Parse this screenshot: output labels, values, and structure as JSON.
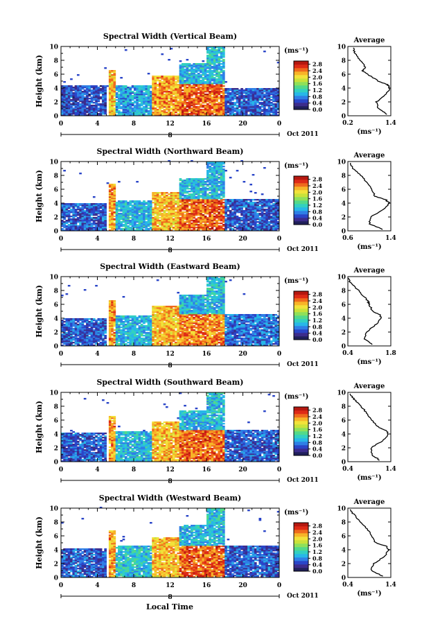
{
  "colors": {
    "colormap": [
      "#20205a",
      "#3c2c8c",
      "#2a45c8",
      "#2f7fe6",
      "#27b7e8",
      "#32d0c0",
      "#52d98a",
      "#8ee05a",
      "#c9e23a",
      "#f2e23a",
      "#f7b428",
      "#ef6a1c",
      "#de2a16",
      "#b51810"
    ],
    "bar_ticks": [
      "2.8",
      "2.4",
      "2.0",
      "1.6",
      "1.2",
      "0.8",
      "0.4",
      "0.0"
    ]
  },
  "common": {
    "unit_label": "(ms⁻¹)",
    "date_label": "Oct 2011",
    "day_label": "8",
    "xlabel": "Local Time",
    "ylabel": "Height (km)",
    "avg_title": "Average",
    "avg_xlabel": "(ms⁻¹)",
    "time_ticks": [
      "0",
      "4",
      "8",
      "12",
      "16",
      "20",
      "0"
    ],
    "height_ticks": [
      "0",
      "2",
      "4",
      "6",
      "8",
      "10"
    ]
  },
  "chart_data": [
    {
      "type": "heatmap",
      "title": "Spectral Width (Vertical Beam)",
      "x_range_hours": [
        0,
        24
      ],
      "ylim_km": [
        0,
        10
      ],
      "clim_ms": [
        0,
        3.0
      ],
      "regions": [
        {
          "t0": 0,
          "t1": 5,
          "h0": 0,
          "h1": 4.4,
          "w": 0.55
        },
        {
          "t0": 5.2,
          "t1": 6,
          "h0": 0,
          "h1": 6.6,
          "w": 2.2
        },
        {
          "t0": 6,
          "t1": 10,
          "h0": 0,
          "h1": 4.3,
          "w": 0.9
        },
        {
          "t0": 10,
          "t1": 13,
          "h0": 0,
          "h1": 5.8,
          "w": 2.3
        },
        {
          "t0": 13,
          "t1": 18,
          "h0": 0,
          "h1": 4.6,
          "w": 2.5
        },
        {
          "t0": 13,
          "t1": 18,
          "h0": 4.6,
          "h1": 7.6,
          "w": 1.0
        },
        {
          "t0": 16,
          "t1": 18,
          "h0": 7.6,
          "h1": 9.8,
          "w": 1.1
        },
        {
          "t0": 18,
          "t1": 24,
          "h0": 0,
          "h1": 4.0,
          "w": 0.6
        }
      ],
      "avg_profile": {
        "xlim": [
          0.2,
          1.4
        ],
        "xticks": [
          "0.2",
          "1.4"
        ],
        "heights": [
          0.2,
          1,
          2,
          3,
          4,
          4.5,
          5,
          6,
          6.5,
          7,
          8,
          9,
          9.8
        ],
        "values": [
          1.3,
          1.05,
          1.0,
          1.25,
          1.38,
          1.3,
          1.05,
          0.75,
          0.6,
          0.7,
          0.55,
          0.4,
          0.35
        ]
      }
    },
    {
      "type": "heatmap",
      "title": "Spectral Width (Northward Beam)",
      "x_range_hours": [
        0,
        24
      ],
      "ylim_km": [
        0,
        10
      ],
      "clim_ms": [
        0,
        3.0
      ],
      "regions": [
        {
          "t0": 0,
          "t1": 5,
          "h0": 0,
          "h1": 4.0,
          "w": 0.6
        },
        {
          "t0": 5.2,
          "t1": 6,
          "h0": 0,
          "h1": 6.8,
          "w": 2.3
        },
        {
          "t0": 6,
          "t1": 10,
          "h0": 0,
          "h1": 4.3,
          "w": 1.0
        },
        {
          "t0": 10,
          "t1": 13,
          "h0": 0,
          "h1": 5.6,
          "w": 2.2
        },
        {
          "t0": 13,
          "t1": 18,
          "h0": 0,
          "h1": 4.6,
          "w": 2.5
        },
        {
          "t0": 13,
          "t1": 18,
          "h0": 4.6,
          "h1": 7.5,
          "w": 1.0
        },
        {
          "t0": 16,
          "t1": 18,
          "h0": 7.5,
          "h1": 9.8,
          "w": 1.0
        },
        {
          "t0": 18,
          "t1": 24,
          "h0": 0,
          "h1": 4.5,
          "w": 0.6
        }
      ],
      "avg_profile": {
        "xlim": [
          0.6,
          1.4
        ],
        "xticks": [
          "0.6",
          "1.4"
        ],
        "heights": [
          0.2,
          1,
          2,
          3,
          4,
          4.5,
          5,
          6,
          7,
          8,
          9,
          9.8
        ],
        "values": [
          1.25,
          1.0,
          1.02,
          1.25,
          1.38,
          1.3,
          1.1,
          1.05,
          0.95,
          0.85,
          0.7,
          0.65
        ]
      }
    },
    {
      "type": "heatmap",
      "title": "Spectral Width (Eastward Beam)",
      "x_range_hours": [
        0,
        24
      ],
      "ylim_km": [
        0,
        10
      ],
      "clim_ms": [
        0,
        3.0
      ],
      "regions": [
        {
          "t0": 0,
          "t1": 5,
          "h0": 0,
          "h1": 4.0,
          "w": 0.6
        },
        {
          "t0": 5.2,
          "t1": 6,
          "h0": 0,
          "h1": 6.6,
          "w": 2.3
        },
        {
          "t0": 6,
          "t1": 10,
          "h0": 0,
          "h1": 4.3,
          "w": 1.0
        },
        {
          "t0": 10,
          "t1": 13,
          "h0": 0,
          "h1": 5.7,
          "w": 2.2
        },
        {
          "t0": 13,
          "t1": 18,
          "h0": 0,
          "h1": 4.6,
          "w": 2.4
        },
        {
          "t0": 13,
          "t1": 18,
          "h0": 4.6,
          "h1": 7.4,
          "w": 1.0
        },
        {
          "t0": 16,
          "t1": 18,
          "h0": 7.4,
          "h1": 9.8,
          "w": 1.1
        },
        {
          "t0": 18,
          "t1": 24,
          "h0": 0,
          "h1": 4.6,
          "w": 0.7
        }
      ],
      "avg_profile": {
        "xlim": [
          0.4,
          1.8
        ],
        "xticks": [
          "0.4",
          "1.8"
        ],
        "heights": [
          0.2,
          1,
          2,
          3,
          4,
          4.5,
          5,
          6,
          6.5,
          7,
          8,
          9,
          9.8
        ],
        "values": [
          1.2,
          0.95,
          1.0,
          1.3,
          1.5,
          1.45,
          1.2,
          1.1,
          1.05,
          0.95,
          0.75,
          0.5,
          0.4
        ]
      }
    },
    {
      "type": "heatmap",
      "title": "Spectral Width (Southward Beam)",
      "x_range_hours": [
        0,
        24
      ],
      "ylim_km": [
        0,
        10
      ],
      "clim_ms": [
        0,
        3.0
      ],
      "regions": [
        {
          "t0": 0,
          "t1": 5,
          "h0": 0,
          "h1": 4.2,
          "w": 0.6
        },
        {
          "t0": 5.2,
          "t1": 6,
          "h0": 0,
          "h1": 6.6,
          "w": 2.3
        },
        {
          "t0": 6,
          "t1": 10,
          "h0": 0,
          "h1": 4.3,
          "w": 1.0
        },
        {
          "t0": 10,
          "t1": 13,
          "h0": 0,
          "h1": 5.8,
          "w": 2.2
        },
        {
          "t0": 13,
          "t1": 18,
          "h0": 0,
          "h1": 4.6,
          "w": 2.5
        },
        {
          "t0": 13,
          "t1": 18,
          "h0": 4.6,
          "h1": 7.4,
          "w": 1.0
        },
        {
          "t0": 16,
          "t1": 18,
          "h0": 7.4,
          "h1": 9.8,
          "w": 1.1
        },
        {
          "t0": 18,
          "t1": 24,
          "h0": 0,
          "h1": 4.6,
          "w": 0.6
        }
      ],
      "avg_profile": {
        "xlim": [
          0.4,
          1.4
        ],
        "xticks": [
          "0.4",
          "1.4"
        ],
        "heights": [
          0.2,
          1,
          2,
          3,
          4,
          4.5,
          5,
          6,
          7,
          8,
          9,
          9.8
        ],
        "values": [
          1.15,
          0.95,
          0.95,
          1.2,
          1.35,
          1.3,
          1.1,
          0.95,
          0.85,
          0.7,
          0.55,
          0.45
        ]
      }
    },
    {
      "type": "heatmap",
      "title": "Spectral Width (Westward Beam)",
      "x_range_hours": [
        0,
        24
      ],
      "ylim_km": [
        0,
        10
      ],
      "clim_ms": [
        0,
        3.0
      ],
      "regions": [
        {
          "t0": 0,
          "t1": 5,
          "h0": 0,
          "h1": 4.2,
          "w": 0.6
        },
        {
          "t0": 5.2,
          "t1": 6,
          "h0": 0,
          "h1": 6.7,
          "w": 2.3
        },
        {
          "t0": 6,
          "t1": 10,
          "h0": 0,
          "h1": 4.5,
          "w": 1.1
        },
        {
          "t0": 10,
          "t1": 13,
          "h0": 0,
          "h1": 5.7,
          "w": 2.2
        },
        {
          "t0": 13,
          "t1": 18,
          "h0": 0,
          "h1": 4.6,
          "w": 2.5
        },
        {
          "t0": 13,
          "t1": 18,
          "h0": 4.6,
          "h1": 7.5,
          "w": 1.0
        },
        {
          "t0": 16,
          "t1": 18,
          "h0": 7.5,
          "h1": 9.8,
          "w": 1.1
        },
        {
          "t0": 18,
          "t1": 24,
          "h0": 0,
          "h1": 4.6,
          "w": 0.6
        }
      ],
      "avg_profile": {
        "xlim": [
          0.4,
          1.4
        ],
        "xticks": [
          "0.4",
          "1.4"
        ],
        "heights": [
          0.2,
          1,
          2,
          3,
          4,
          4.5,
          5,
          6,
          7,
          8,
          9,
          9.8
        ],
        "values": [
          1.2,
          0.95,
          1.0,
          1.25,
          1.35,
          1.3,
          1.05,
          0.95,
          0.85,
          0.7,
          0.55,
          0.45
        ]
      }
    }
  ]
}
